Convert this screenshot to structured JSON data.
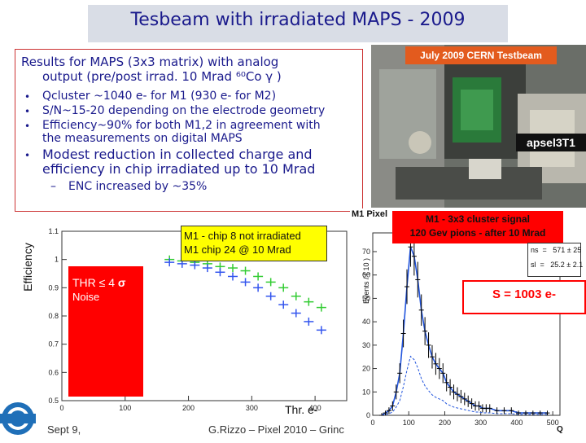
{
  "slide": {
    "title": "Tesbeam with irradiated MAPS - 2009",
    "footer_date": "Sept 9,",
    "footer_author": "G.Rizzo – Pixel 2010 – Grinc"
  },
  "results": {
    "heading_line1": "Results for MAPS (3x3 matrix) with analog",
    "heading_line2": "output (pre/post irrad. 10 Mrad ⁶⁰Co γ )",
    "bullets": [
      "Qcluster ~1040 e- for M1 (930 e- for M2)",
      "S/N~15-20 depending on the electrode geometry",
      "Efficiency~90% for both M1,2 in agreement with",
      "the measurements on digital MAPS"
    ],
    "modest_line1": "Modest reduction in collected charge and",
    "modest_line2": "efficiency in chip irradiated up to 10 Mrad",
    "sub_bullet": "ENC increased by ~35%"
  },
  "photo": {
    "caption_top": "July 2009 CERN Testbeam",
    "caption_chip": "apsel3T1"
  },
  "efficiency_plot": {
    "ylabel": "Efficiency",
    "xlabel": "Thr. e-",
    "legend_line1": "M1 - chip 8 not irradiated",
    "legend_line2": "M1 chip 24 @ 10 Mrad",
    "thr_label": "THR ≤ 4",
    "sigma": "σ",
    "noise_label": "Noise",
    "yticks": [
      "1.1",
      "1",
      "0.9",
      "0.8",
      "0.7",
      "0.6",
      "0.5"
    ],
    "xticks": [
      "0",
      "100",
      "200",
      "300",
      "400"
    ],
    "colors": {
      "not_irradiated": "#33cc33",
      "irradiated": "#3355ee"
    }
  },
  "histogram": {
    "panel_title": "M1 Pixel",
    "title_line1": "M1 - 3x3 cluster signal",
    "title_line2": "120 Gev pions - after 10 Mrad",
    "ylabel": "Events / ( 10 )",
    "xlabel": "Q",
    "ns": "ns  =   571 ± 25",
    "sl": "sl  =   25.2 ± 2.1",
    "signal": "S = 1003 e-",
    "yticks": [
      "70",
      "60",
      "50",
      "40",
      "30",
      "20",
      "10",
      "0"
    ],
    "xticks": [
      "0",
      "100",
      "200",
      "300",
      "400",
      "500"
    ]
  },
  "chart_data": [
    {
      "type": "scatter",
      "title": "",
      "xlabel": "Thr. e-",
      "ylabel": "Efficiency",
      "xlim": [
        0,
        450
      ],
      "ylim": [
        0.5,
        1.1
      ],
      "series": [
        {
          "name": "M1 - chip 8 not irradiated",
          "color": "#33cc33",
          "x": [
            170,
            190,
            210,
            230,
            250,
            270,
            290,
            310,
            330,
            350,
            370,
            390,
            410
          ],
          "y": [
            1.0,
            0.995,
            0.99,
            0.985,
            0.975,
            0.97,
            0.96,
            0.94,
            0.92,
            0.9,
            0.87,
            0.85,
            0.83
          ]
        },
        {
          "name": "M1 chip 24 @ 10 Mrad",
          "color": "#3355ee",
          "x": [
            170,
            190,
            210,
            230,
            250,
            270,
            290,
            310,
            330,
            350,
            370,
            390,
            410
          ],
          "y": [
            0.99,
            0.985,
            0.98,
            0.97,
            0.955,
            0.94,
            0.92,
            0.9,
            0.87,
            0.84,
            0.81,
            0.78,
            0.75
          ]
        }
      ]
    },
    {
      "type": "bar",
      "title": "M1 - 3x3 cluster signal",
      "xlabel": "Q",
      "ylabel": "Events / ( 10 )",
      "xlim": [
        0,
        520
      ],
      "ylim": [
        0,
        78
      ],
      "bin_centers": [
        25,
        35,
        45,
        55,
        65,
        75,
        85,
        95,
        105,
        115,
        125,
        135,
        145,
        155,
        165,
        175,
        185,
        195,
        205,
        215,
        225,
        235,
        245,
        255,
        265,
        275,
        285,
        295,
        305,
        315,
        325,
        345,
        365,
        385,
        405,
        425,
        445,
        465,
        485
      ],
      "values": [
        0,
        1,
        2,
        4,
        10,
        18,
        35,
        55,
        72,
        68,
        58,
        45,
        36,
        30,
        25,
        22,
        20,
        18,
        14,
        12,
        10,
        9,
        8,
        7,
        6,
        5,
        4,
        4,
        3,
        3,
        3,
        2,
        2,
        2,
        1,
        1,
        1,
        1,
        1
      ]
    }
  ]
}
